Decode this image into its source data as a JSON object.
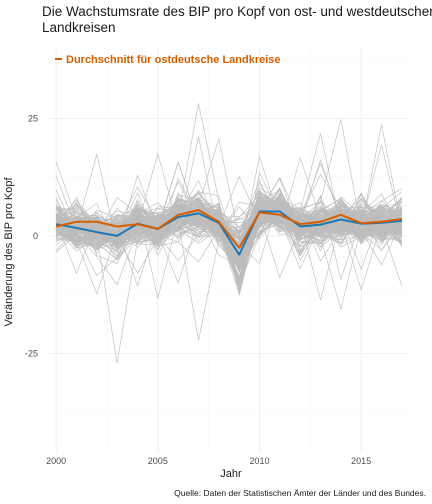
{
  "chart_data": {
    "type": "line",
    "title_line1": "Die Wachstumsrate des BIP pro Kopf von ost- und westdeutschen",
    "title_line2": "Landkreisen",
    "xlabel": "Jahr",
    "ylabel": "Veränderung des BIP pro Kopf",
    "caption": "Quelle: Daten der Statistischen Ämter der Länder und des Bundes.",
    "xlim": [
      1999.6,
      2017.4
    ],
    "ylim": [
      -46,
      40
    ],
    "x_ticks": [
      2000,
      2005,
      2010,
      2015
    ],
    "y_ticks": [
      -25,
      0,
      25
    ],
    "grid": true,
    "legend_position": "top-left",
    "x": [
      2000,
      2001,
      2002,
      2003,
      2004,
      2005,
      2006,
      2007,
      2008,
      2009,
      2010,
      2011,
      2012,
      2013,
      2014,
      2015,
      2016,
      2017
    ],
    "series": [
      {
        "name": "",
        "color": "#1f77b4",
        "values": [
          2.5,
          1.7,
          0.8,
          0.0,
          2.6,
          1.5,
          4.0,
          4.8,
          2.8,
          -4.0,
          5.2,
          5.2,
          2.0,
          2.4,
          3.5,
          2.6,
          2.8,
          3.2
        ]
      },
      {
        "name": "Durchschnitt für ostdeutsche Landkreise",
        "color": "#d55e00",
        "values": [
          2.0,
          3.0,
          3.0,
          2.0,
          2.5,
          1.5,
          4.5,
          5.5,
          3.0,
          -2.5,
          5.0,
          4.5,
          2.5,
          3.0,
          4.5,
          2.7,
          3.0,
          3.6
        ]
      }
    ],
    "background_lines": {
      "color": "#bdbdbd",
      "count": 160
    }
  }
}
